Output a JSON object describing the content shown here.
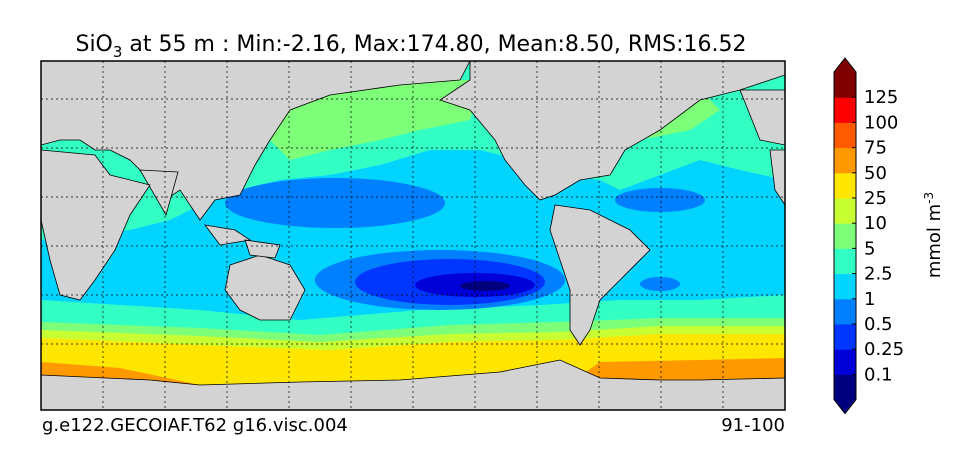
{
  "header": {
    "title_species": "SiO",
    "title_subscript": "3",
    "title_rest": " at 55 m : Min:-2.16, Max:174.80, Mean:8.50, RMS:16.52"
  },
  "footer": {
    "run": "g.e122.GECOIAF.T62 g16.visc.004",
    "years": "91-100"
  },
  "colorbar": {
    "label": "mmol m",
    "label_superscript": "-3",
    "ticks": [
      0.1,
      0.25,
      0.5,
      1,
      2.5,
      5,
      10,
      25,
      50,
      75,
      100,
      125
    ],
    "colors": [
      "#00007f",
      "#0000d8",
      "#0036ff",
      "#0080ff",
      "#00d4ff",
      "#33ffc4",
      "#7dff7a",
      "#c8ff32",
      "#ffe600",
      "#ff9900",
      "#ff5a00",
      "#ff0000",
      "#7f0000"
    ]
  }
}
